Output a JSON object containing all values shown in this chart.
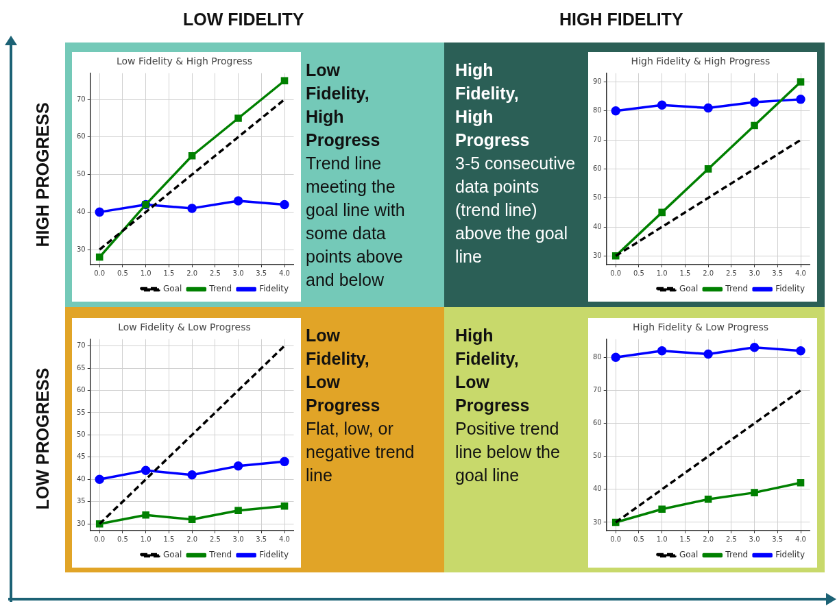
{
  "chart_data": [
    {
      "type": "other",
      "annotations": [
        "LOW FIDELITY",
        "HIGH FIDELITY",
        "HIGH PROGRESS",
        "LOW PROGRESS"
      ]
    },
    {
      "type": "line",
      "title": "Low Fidelity & High Progress",
      "x": [
        0,
        1,
        2,
        3,
        4
      ],
      "xlim": [
        -0.2,
        4.2
      ],
      "xticks": [
        {
          "value": 0,
          "label": "0.0"
        },
        {
          "value": 0.5,
          "label": "0.5"
        },
        {
          "value": 1,
          "label": "1.0"
        },
        {
          "value": 1.5,
          "label": "1.5"
        },
        {
          "value": 2,
          "label": "2.0"
        },
        {
          "value": 2.5,
          "label": "2.5"
        },
        {
          "value": 3,
          "label": "3.0"
        },
        {
          "value": 3.5,
          "label": "3.5"
        },
        {
          "value": 4,
          "label": "4.0"
        }
      ],
      "ylim": [
        26,
        77
      ],
      "yticks": [
        30,
        40,
        50,
        60,
        70
      ],
      "grid": true,
      "legend": "bottom right",
      "series": [
        {
          "name": "Fidelity",
          "color": "#0000ff",
          "marker": "circle",
          "values": [
            40,
            42,
            41,
            43,
            42
          ]
        },
        {
          "name": "Trend",
          "color": "#008000",
          "marker": "square",
          "values": [
            28,
            42,
            55,
            65,
            75
          ]
        },
        {
          "name": "Goal",
          "color": "#000000",
          "marker": "none",
          "line_style": "dashed",
          "values": [
            30,
            40,
            50,
            60,
            70
          ]
        }
      ]
    },
    {
      "type": "other",
      "title": "Low Fidelity, High Progress",
      "annotations": [
        "Trend line meeting the goal line with some data points above and below"
      ]
    },
    {
      "type": "other",
      "title": "High Fidelity, High Progress",
      "annotations": [
        "3-5 consecutive data points (trend line) above the goal line"
      ]
    },
    {
      "type": "line",
      "title": "High Fidelity & High Progress",
      "x": [
        0,
        1,
        2,
        3,
        4
      ],
      "xlim": [
        -0.2,
        4.2
      ],
      "xticks": [
        {
          "value": 0,
          "label": "0.0"
        },
        {
          "value": 0.5,
          "label": "0.5"
        },
        {
          "value": 1,
          "label": "1.0"
        },
        {
          "value": 1.5,
          "label": "1.5"
        },
        {
          "value": 2,
          "label": "2.0"
        },
        {
          "value": 2.5,
          "label": "2.5"
        },
        {
          "value": 3,
          "label": "3.0"
        },
        {
          "value": 3.5,
          "label": "3.5"
        },
        {
          "value": 4,
          "label": "4.0"
        }
      ],
      "ylim": [
        27,
        93
      ],
      "yticks": [
        30,
        40,
        50,
        60,
        70,
        80,
        90
      ],
      "grid": true,
      "legend": "bottom right",
      "series": [
        {
          "name": "Fidelity",
          "color": "#0000ff",
          "marker": "circle",
          "values": [
            80,
            82,
            81,
            83,
            84
          ]
        },
        {
          "name": "Trend",
          "color": "#008000",
          "marker": "square",
          "values": [
            30,
            45,
            60,
            75,
            90
          ]
        },
        {
          "name": "Goal",
          "color": "#000000",
          "marker": "none",
          "line_style": "dashed",
          "values": [
            30,
            40,
            50,
            60,
            70
          ]
        }
      ]
    },
    {
      "type": "line",
      "title": "Low Fidelity & Low Progress",
      "x": [
        0,
        1,
        2,
        3,
        4
      ],
      "xlim": [
        -0.2,
        4.2
      ],
      "xticks": [
        {
          "value": 0,
          "label": "0.0"
        },
        {
          "value": 0.5,
          "label": "0.5"
        },
        {
          "value": 1,
          "label": "1.0"
        },
        {
          "value": 1.5,
          "label": "1.5"
        },
        {
          "value": 2,
          "label": "2.0"
        },
        {
          "value": 2.5,
          "label": "2.5"
        },
        {
          "value": 3,
          "label": "3.0"
        },
        {
          "value": 3.5,
          "label": "3.5"
        },
        {
          "value": 4,
          "label": "4.0"
        }
      ],
      "ylim": [
        28.5,
        71.5
      ],
      "yticks": [
        30,
        35,
        40,
        45,
        50,
        55,
        60,
        65,
        70
      ],
      "grid": true,
      "legend": "bottom right",
      "series": [
        {
          "name": "Fidelity",
          "color": "#0000ff",
          "marker": "circle",
          "values": [
            40,
            42,
            41,
            43,
            44
          ]
        },
        {
          "name": "Trend",
          "color": "#008000",
          "marker": "square",
          "values": [
            30,
            32,
            31,
            33,
            34
          ]
        },
        {
          "name": "Goal",
          "color": "#000000",
          "marker": "none",
          "line_style": "dashed",
          "values": [
            30,
            40,
            50,
            60,
            70
          ]
        }
      ]
    },
    {
      "type": "other",
      "title": "Low Fidelity, Low Progress",
      "annotations": [
        "Flat, low, or negative trend line"
      ]
    },
    {
      "type": "other",
      "title": "High Fidelity, Low Progress",
      "annotations": [
        "Positive trend line below the goal line"
      ]
    },
    {
      "type": "line",
      "title": "High Fidelity & Low Progress",
      "x": [
        0,
        1,
        2,
        3,
        4
      ],
      "xlim": [
        -0.2,
        4.2
      ],
      "xticks": [
        {
          "value": 0,
          "label": "0.0"
        },
        {
          "value": 0.5,
          "label": "0.5"
        },
        {
          "value": 1,
          "label": "1.0"
        },
        {
          "value": 1.5,
          "label": "1.5"
        },
        {
          "value": 2,
          "label": "2.0"
        },
        {
          "value": 2.5,
          "label": "2.5"
        },
        {
          "value": 3,
          "label": "3.0"
        },
        {
          "value": 3.5,
          "label": "3.5"
        },
        {
          "value": 4,
          "label": "4.0"
        }
      ],
      "ylim": [
        27.5,
        85.5
      ],
      "yticks": [
        30,
        40,
        50,
        60,
        70,
        80
      ],
      "grid": true,
      "legend": "bottom right",
      "series": [
        {
          "name": "Fidelity",
          "color": "#0000ff",
          "marker": "circle",
          "values": [
            80,
            82,
            81,
            83,
            82
          ]
        },
        {
          "name": "Trend",
          "color": "#008000",
          "marker": "square",
          "values": [
            30,
            34,
            37,
            39,
            42
          ]
        },
        {
          "name": "Goal",
          "color": "#000000",
          "marker": "none",
          "line_style": "dashed",
          "values": [
            30,
            40,
            50,
            60,
            70
          ]
        }
      ]
    }
  ]
}
